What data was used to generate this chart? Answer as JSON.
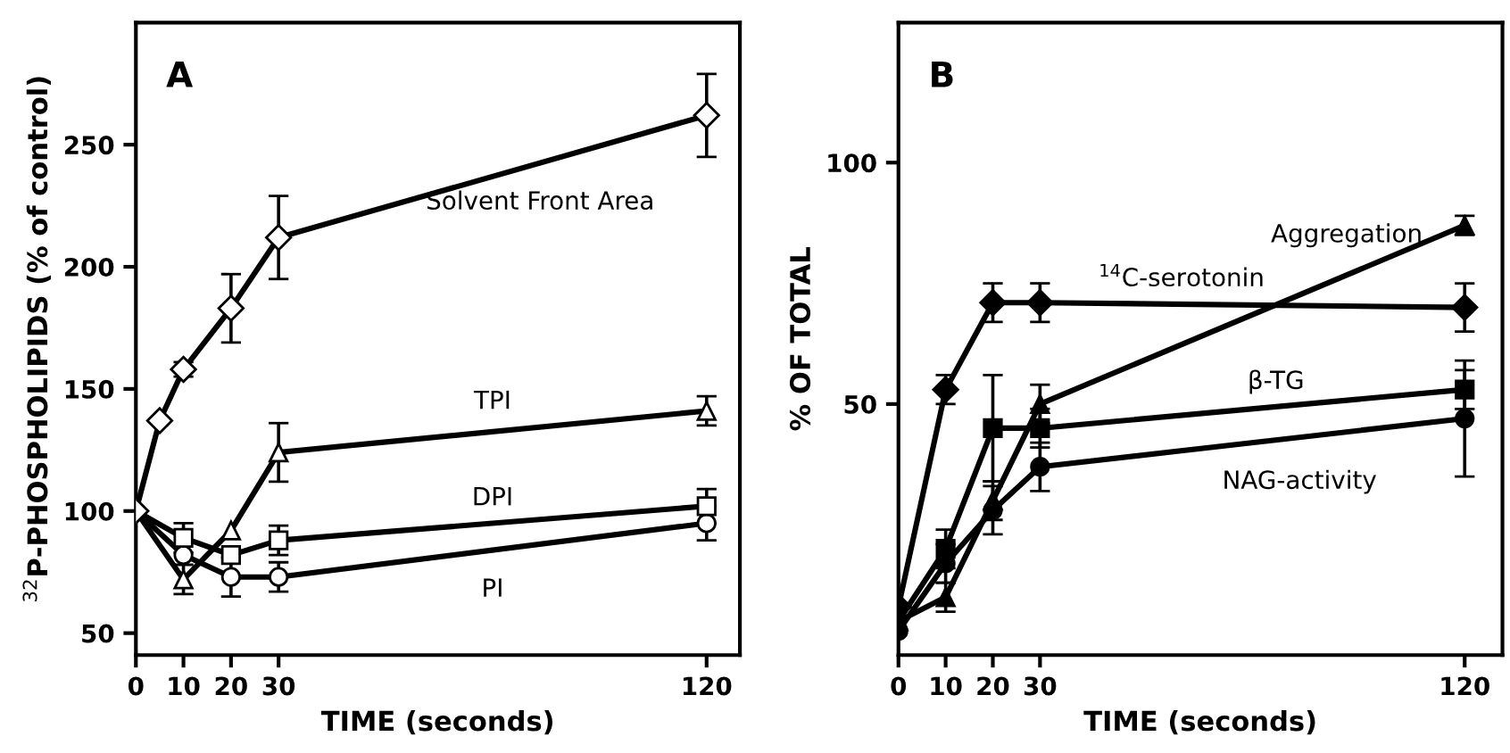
{
  "chart_data": [
    {
      "type": "line",
      "title": "A",
      "xlabel": "TIME (seconds)",
      "ylabel": "$^{32}$P-PHOSPHOLIPIDS (% of control)",
      "x": [
        0,
        10,
        20,
        30,
        120
      ],
      "xlim": [
        0,
        127
      ],
      "xticks": [
        0,
        10,
        20,
        30,
        120
      ],
      "ylim": [
        41,
        300
      ],
      "yticks": [
        50,
        100,
        150,
        200,
        250
      ],
      "grid": false,
      "legend": false,
      "line_style": "solid",
      "series": [
        {
          "name": "Solvent Front Area",
          "color": "#000000",
          "marker": "diamond",
          "x": [
            0,
            5,
            10,
            20,
            30,
            120
          ],
          "values": [
            100,
            137,
            158,
            183,
            212,
            262
          ],
          "errors": [
            null,
            null,
            3,
            14,
            17,
            17
          ]
        },
        {
          "name": "TPI",
          "color": "#000000",
          "marker": "triangle",
          "values": [
            100,
            72,
            92,
            124,
            141
          ],
          "errors": [
            null,
            6,
            null,
            12,
            6
          ]
        },
        {
          "name": "DPI",
          "color": "#000000",
          "marker": "square",
          "values": [
            100,
            89,
            82,
            88,
            102
          ],
          "errors": [
            null,
            6,
            null,
            6,
            7
          ]
        },
        {
          "name": "PI",
          "color": "#000000",
          "marker": "circle",
          "values": [
            100,
            82,
            73,
            73,
            95
          ],
          "errors": [
            null,
            null,
            8,
            6,
            7
          ]
        }
      ]
    },
    {
      "type": "line",
      "title": "B",
      "xlabel": "TIME (seconds)",
      "ylabel": "% OF TOTAL",
      "x": [
        0,
        10,
        20,
        30,
        120
      ],
      "xlim": [
        0,
        128
      ],
      "xticks": [
        0,
        10,
        20,
        30,
        120
      ],
      "ylim": [
        -2,
        129
      ],
      "yticks": [
        50,
        100
      ],
      "grid": false,
      "legend": false,
      "line_style": "solid",
      "series": [
        {
          "name": "Aggregation",
          "color": "#000000",
          "marker": "triangle",
          "values": [
            5,
            10,
            30,
            50,
            87
          ],
          "errors": [
            null,
            3,
            4,
            4,
            2
          ]
        },
        {
          "name": "$^{14}$C-serotonin",
          "color": "#000000",
          "marker": "diamond",
          "values": [
            8,
            53,
            71,
            71,
            70
          ],
          "errors": [
            null,
            3,
            4,
            4,
            5
          ]
        },
        {
          "name": "β-TG",
          "color": "#000000",
          "marker": "square",
          "values": [
            5,
            20,
            45,
            45,
            53
          ],
          "errors": [
            null,
            4,
            11,
            4,
            4
          ]
        },
        {
          "name": "NAG-activity",
          "color": "#000000",
          "marker": "circle",
          "values": [
            3,
            17,
            28,
            37,
            47
          ],
          "errors": [
            null,
            4,
            5,
            5,
            12
          ]
        }
      ]
    }
  ]
}
